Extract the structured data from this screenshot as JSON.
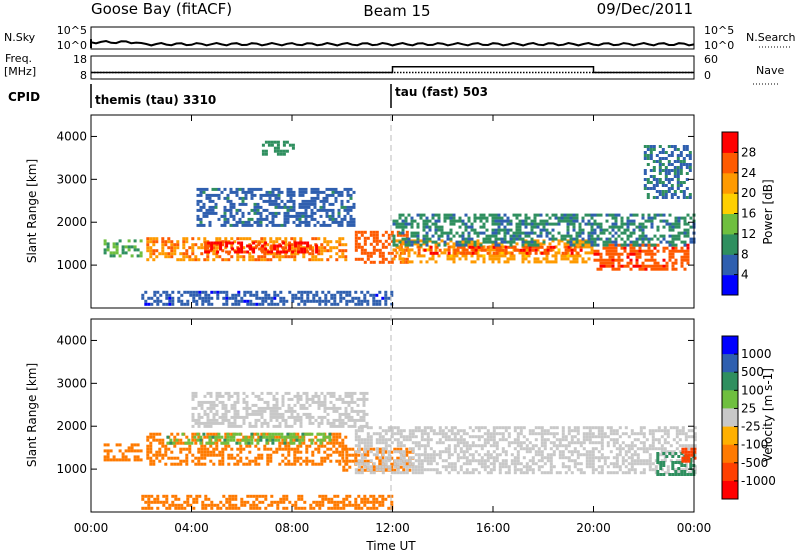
{
  "header": {
    "station": "Goose Bay (fitACF)",
    "beam": "Beam 15",
    "date": "09/Dec/2011"
  },
  "noise_panel": {
    "left_label": "N.Sky",
    "left_ticks": [
      "10^5",
      "10^0"
    ],
    "right_ticks": [
      "10^5",
      "10^0"
    ],
    "right_label": "N.Search",
    "trace_level_log10": 1.1
  },
  "freq_panel": {
    "left_label": "Freq.",
    "left_unit": "[MHz]",
    "left_ticks": [
      "18",
      "8"
    ],
    "right_ticks": [
      "60",
      "0"
    ],
    "right_label": "Nave",
    "freq_mhz": 10.8,
    "nave_levels": [
      {
        "from": "00:00",
        "to": "12:00",
        "value": 17
      },
      {
        "from": "12:00",
        "to": "20:00",
        "value": 32
      },
      {
        "from": "20:00",
        "to": "24:00",
        "value": 17
      }
    ]
  },
  "cpid": {
    "label": "CPID",
    "modes": [
      {
        "name": "themis (tau) 3310",
        "start": "00:00"
      },
      {
        "name": "tau (fast) 503",
        "start": "12:00"
      }
    ]
  },
  "x_axis": {
    "label": "Time UT",
    "ticks": [
      "00:00",
      "04:00",
      "08:00",
      "12:00",
      "16:00",
      "20:00",
      "00:00"
    ],
    "range_hours": [
      0,
      24
    ]
  },
  "chart_data": [
    {
      "type": "heatmap",
      "title": "",
      "ylabel": "Slant Range [km]",
      "xlabel": "Time UT",
      "xlim_hours": [
        0,
        24
      ],
      "ylim_km": [
        0,
        4500
      ],
      "y_ticks": [
        "1000",
        "2000",
        "3000",
        "4000"
      ],
      "colorbar": {
        "label": "Power [dB]",
        "ticks": [
          "4",
          "8",
          "12",
          "16",
          "20",
          "24",
          "28"
        ],
        "range": [
          0,
          30
        ],
        "colors": [
          "#0000ff",
          "#2f5faf",
          "#2f8f5f",
          "#6fbf3f",
          "#ffd000",
          "#ff9a00",
          "#ff5a00",
          "#ff0000"
        ]
      },
      "echo_bands": [
        {
          "t0": 0.5,
          "t1": 2.0,
          "r0": 1250,
          "r1": 1600,
          "value": 11
        },
        {
          "t0": 2.2,
          "t1": 10.2,
          "r0": 1120,
          "r1": 1650,
          "value": 22
        },
        {
          "t0": 4.5,
          "t1": 9.0,
          "r0": 1300,
          "r1": 1550,
          "value": 27
        },
        {
          "t0": 10.5,
          "t1": 12.6,
          "r0": 1050,
          "r1": 1800,
          "value": 24
        },
        {
          "t0": 12.0,
          "t1": 20.0,
          "r0": 1050,
          "r1": 1600,
          "value": 20
        },
        {
          "t0": 13.0,
          "t1": 19.5,
          "r0": 1300,
          "r1": 1450,
          "value": 25
        },
        {
          "t0": 20.0,
          "t1": 23.8,
          "r0": 900,
          "r1": 1500,
          "value": 25
        },
        {
          "t0": 12.0,
          "t1": 24.0,
          "r0": 1500,
          "r1": 2200,
          "value": 8
        },
        {
          "t0": 4.2,
          "t1": 10.5,
          "r0": 1900,
          "r1": 2800,
          "value": 6
        },
        {
          "t0": 6.8,
          "t1": 8.0,
          "r0": 3600,
          "r1": 3900,
          "value": 9
        },
        {
          "t0": 22.0,
          "t1": 23.8,
          "r0": 2600,
          "r1": 3800,
          "value": 7
        },
        {
          "t0": 2.0,
          "t1": 12.0,
          "r0": 100,
          "r1": 400,
          "value": 5
        }
      ]
    },
    {
      "type": "heatmap",
      "title": "",
      "ylabel": "Slant Range [km]",
      "xlabel": "Time UT",
      "xlim_hours": [
        0,
        24
      ],
      "ylim_km": [
        0,
        4500
      ],
      "y_ticks": [
        "1000",
        "2000",
        "3000",
        "4000"
      ],
      "colorbar": {
        "label": "Velocity [m s-1]",
        "ticks": [
          "1000",
          "500",
          "100",
          "25",
          "-25",
          "-100",
          "-500",
          "-1000"
        ],
        "colors": [
          "#0000ff",
          "#2f5faf",
          "#2f8f5f",
          "#6fbf3f",
          "#c8c8c8",
          "#ffb000",
          "#ff7a00",
          "#ff4000",
          "#ff0000"
        ]
      },
      "echo_bands": [
        {
          "t0": 0.5,
          "t1": 2.0,
          "r0": 1250,
          "r1": 1600,
          "value": -250
        },
        {
          "t0": 2.2,
          "t1": 10.2,
          "r0": 1120,
          "r1": 1850,
          "value": -150
        },
        {
          "t0": 3.0,
          "t1": 9.5,
          "r0": 1600,
          "r1": 1850,
          "value": 80
        },
        {
          "t0": 10.0,
          "t1": 12.8,
          "r0": 1000,
          "r1": 1500,
          "value": -300
        },
        {
          "t0": 10.5,
          "t1": 24.0,
          "r0": 900,
          "r1": 2000,
          "value": 0
        },
        {
          "t0": 4.0,
          "t1": 11.0,
          "r0": 2000,
          "r1": 2800,
          "value": 0
        },
        {
          "t0": 22.5,
          "t1": 24.0,
          "r0": 900,
          "r1": 1400,
          "value": 200
        },
        {
          "t0": 23.5,
          "t1": 24.0,
          "r0": 1200,
          "r1": 1500,
          "value": -600
        },
        {
          "t0": 2.0,
          "t1": 12.0,
          "r0": 100,
          "r1": 400,
          "value": -200
        }
      ]
    }
  ]
}
